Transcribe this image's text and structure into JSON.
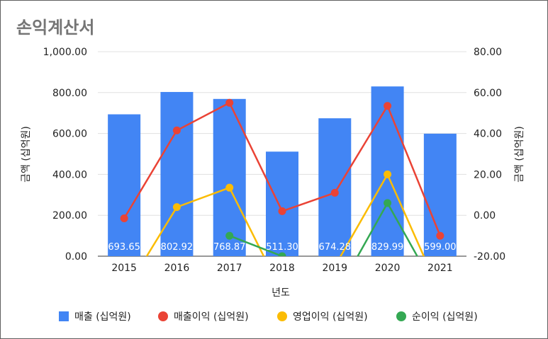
{
  "chart_data": {
    "type": "bar",
    "title": "손익계산서",
    "xlabel": "년도",
    "ylabel_left": "금액 (십억원)",
    "ylabel_right": "금액 (십억원)",
    "categories": [
      "2015",
      "2016",
      "2017",
      "2018",
      "2019",
      "2020",
      "2021"
    ],
    "ylim_left": [
      0,
      1000
    ],
    "ylim_right": [
      -20,
      80
    ],
    "left_ticks": [
      "1,000.00",
      "800.00",
      "600.00",
      "400.00",
      "200.00",
      "0.00"
    ],
    "left_tick_values": [
      1000,
      800,
      600,
      400,
      200,
      0
    ],
    "right_ticks": [
      "80.00",
      "60.00",
      "40.00",
      "20.00",
      "0.00",
      "-20.00"
    ],
    "right_tick_values": [
      80,
      60,
      40,
      20,
      0,
      -20
    ],
    "grid": true,
    "legend_position": "bottom",
    "series": [
      {
        "name": "매출 (십억원)",
        "type": "bar",
        "axis": "left",
        "color": "#4285f4",
        "values": [
          693.65,
          802.92,
          768.87,
          511.3,
          674.28,
          829.99,
          599.0
        ],
        "labels": [
          "693.65",
          "802.92",
          "768.87",
          "511.30",
          "674.28",
          "829.99",
          "599.00"
        ]
      },
      {
        "name": "매출이익 (십억원)",
        "type": "line",
        "axis": "right",
        "color": "#ea4335",
        "values": [
          -1.5,
          41.5,
          55,
          2,
          11,
          53.5,
          -10
        ]
      },
      {
        "name": "영업이익 (십억원)",
        "type": "line",
        "axis": "right",
        "color": "#fbbc04",
        "values": [
          -38,
          4,
          13.5,
          -38,
          -25,
          20,
          -38
        ]
      },
      {
        "name": "순이익 (십억원)",
        "type": "line",
        "axis": "right",
        "color": "#34a853",
        "values": [
          null,
          null,
          -10,
          -20,
          -40,
          6,
          -40
        ]
      }
    ]
  }
}
